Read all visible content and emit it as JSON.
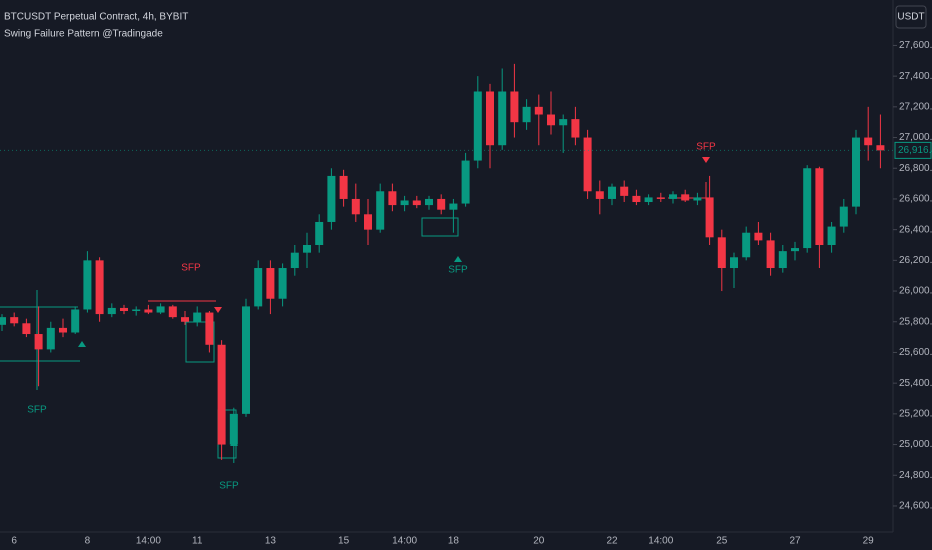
{
  "chart_data": {
    "type": "candlestick",
    "title": "BTCUSDT Perpetual Contract, 4h, BYBIT",
    "subtitle": "Swing Failure Pattern @Tradingade",
    "currency_button": "USDT",
    "last_price_label": "26,916.4",
    "annotations": [
      "SFP",
      "SFP",
      "SFP",
      "SFP",
      "SFP"
    ],
    "up_color": "#089981",
    "down_color": "#f23645",
    "categories": [
      null,
      "6",
      null,
      null,
      null,
      null,
      null,
      "8",
      null,
      null,
      null,
      null,
      "14:00",
      null,
      null,
      null,
      "11",
      null,
      null,
      null,
      null,
      null,
      "13",
      null,
      null,
      null,
      null,
      null,
      "15",
      null,
      null,
      null,
      null,
      "14:00",
      null,
      null,
      null,
      "18",
      null,
      null,
      null,
      null,
      null,
      null,
      "20",
      null,
      null,
      null,
      null,
      null,
      "22",
      null,
      null,
      null,
      "14:00",
      null,
      null,
      null,
      null,
      "25",
      null,
      null,
      null,
      null,
      null,
      "27",
      null,
      null,
      null,
      null,
      null,
      "29",
      null
    ],
    "open": [
      25780,
      25830,
      25790,
      25720,
      25620,
      25760,
      25730,
      25880,
      26200,
      25850,
      25890,
      25870,
      25880,
      25860,
      25900,
      25830,
      25800,
      25860,
      25650,
      25000,
      25200,
      25900,
      26150,
      25950,
      26150,
      26250,
      26300,
      26450,
      26750,
      26600,
      26500,
      26400,
      26650,
      26560,
      26590,
      26560,
      26600,
      26530,
      26570,
      26850,
      27300,
      26950,
      27300,
      27100,
      27200,
      27150,
      27080,
      27120,
      27000,
      26650,
      26600,
      26680,
      26620,
      26580,
      26610,
      26600,
      26630,
      26590,
      26610,
      26350,
      26150,
      26220,
      26380,
      26330,
      26150,
      26260,
      26280,
      26800,
      26300,
      26420,
      26550,
      27000,
      26950
    ],
    "high": [
      25850,
      25860,
      25820,
      25900,
      25800,
      25820,
      25900,
      26260,
      26220,
      25920,
      25910,
      25900,
      25910,
      25920,
      25910,
      25870,
      25900,
      25870,
      25680,
      25240,
      25950,
      26200,
      26200,
      26180,
      26300,
      26380,
      26500,
      26800,
      26790,
      26700,
      26600,
      26700,
      26700,
      26620,
      26620,
      26620,
      26630,
      26600,
      26900,
      27400,
      27350,
      27450,
      27480,
      27250,
      27280,
      27300,
      27150,
      27200,
      27050,
      26720,
      26700,
      26720,
      26660,
      26630,
      26640,
      26650,
      26660,
      26640,
      26750,
      26400,
      26250,
      26420,
      26450,
      26380,
      26300,
      26320,
      26820,
      26810,
      26450,
      26600,
      27050,
      27200,
      27150
    ],
    "low": [
      25740,
      25770,
      25700,
      25380,
      25600,
      25700,
      25720,
      25860,
      25800,
      25830,
      25850,
      25840,
      25850,
      25850,
      25820,
      25780,
      25770,
      25600,
      24900,
      24880,
      25180,
      25880,
      25850,
      25900,
      26100,
      26150,
      26250,
      26400,
      26550,
      26450,
      26300,
      26380,
      26520,
      26520,
      26540,
      26530,
      26500,
      26380,
      26550,
      26800,
      26800,
      26920,
      27000,
      27050,
      26950,
      27020,
      26900,
      26950,
      26600,
      26500,
      26560,
      26580,
      26560,
      26560,
      26580,
      26570,
      26580,
      26560,
      26300,
      26000,
      26020,
      26200,
      26300,
      26100,
      26120,
      26200,
      26250,
      26150,
      26250,
      26380,
      26500,
      26850,
      26800
    ],
    "close": [
      25830,
      25790,
      25720,
      25620,
      25760,
      25730,
      25880,
      26200,
      25850,
      25890,
      25870,
      25880,
      25860,
      25900,
      25830,
      25800,
      25860,
      25650,
      25000,
      25200,
      25900,
      26150,
      25950,
      26150,
      26250,
      26300,
      26450,
      26750,
      26600,
      26500,
      26400,
      26650,
      26560,
      26590,
      26560,
      26600,
      26530,
      26570,
      26850,
      27300,
      26950,
      27300,
      27100,
      27200,
      27150,
      27080,
      27120,
      27000,
      26650,
      26600,
      26680,
      26620,
      26580,
      26610,
      26600,
      26630,
      26590,
      26610,
      26350,
      26150,
      26220,
      26380,
      26330,
      26150,
      26260,
      26280,
      26800,
      26300,
      26420,
      26550,
      27000,
      26950,
      26916.4
    ],
    "ylim": [
      24476,
      27896
    ],
    "yticks": [
      {
        "value": 24600,
        "label": "24,600.0"
      },
      {
        "value": 24800,
        "label": "24,800.0"
      },
      {
        "value": 25000,
        "label": "25,000.0"
      },
      {
        "value": 25200,
        "label": "25,200.0"
      },
      {
        "value": 25400,
        "label": "25,400.0"
      },
      {
        "value": 25600,
        "label": "25,600.0"
      },
      {
        "value": 25800,
        "label": "25,800.0"
      },
      {
        "value": 26000,
        "label": "26,000.0"
      },
      {
        "value": 26200,
        "label": "26,200.0"
      },
      {
        "value": 26400,
        "label": "26,400.0"
      },
      {
        "value": 26600,
        "label": "26,600.0"
      },
      {
        "value": 26800,
        "label": "26,800.0"
      },
      {
        "value": 27000,
        "label": "27,000.0"
      },
      {
        "value": 27200,
        "label": "27,200.0"
      },
      {
        "value": 27400,
        "label": "27,400.0"
      },
      {
        "value": 27600,
        "label": "27,600.0"
      }
    ],
    "grid": false
  }
}
